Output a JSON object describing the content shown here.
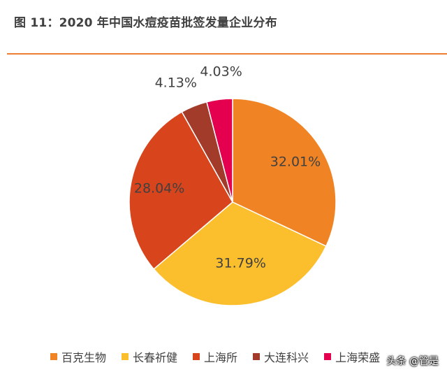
{
  "page": {
    "title": "图 11：2020 年中国水痘疫苗批签发量企业分布",
    "watermark": "头条 @管是"
  },
  "colors": {
    "rule": "#ED7D31"
  },
  "chart_data": {
    "type": "pie",
    "title": "图 11：2020 年中国水痘疫苗批签发量企业分布",
    "categories": [
      "百克生物",
      "长春祈健",
      "上海所",
      "大连科兴",
      "上海荣盛"
    ],
    "values": [
      32.01,
      31.79,
      28.04,
      4.13,
      4.03
    ],
    "labels": [
      "32.01%",
      "31.79%",
      "28.04%",
      "4.13%",
      "4.03%"
    ],
    "colors": [
      "#F08425",
      "#FBBE2C",
      "#D8441C",
      "#A23B2A",
      "#E5004F"
    ],
    "start": "12 o'clock, clockwise",
    "legend": "bottom"
  }
}
